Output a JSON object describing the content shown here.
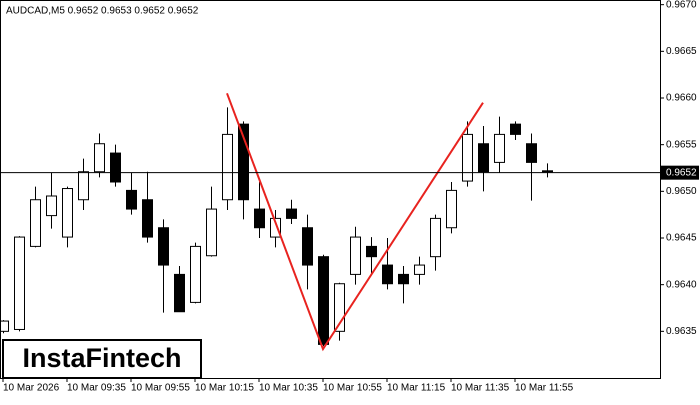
{
  "chart_data": {
    "type": "candlestick",
    "header": "AUDCAD,M5  0.9652 0.9653 0.9652 0.9652",
    "watermark": "InstaFintech",
    "categories": [
      "10 Mar 2026",
      null,
      null,
      null,
      "10 Mar 09:35",
      null,
      null,
      null,
      "10 Mar 09:55",
      null,
      null,
      null,
      "10 Mar 10:15",
      null,
      null,
      null,
      "10 Mar 10:35",
      null,
      null,
      null,
      "10 Mar 10:55",
      null,
      null,
      null,
      "10 Mar 11:15",
      null,
      null,
      null,
      "10 Mar 11:35",
      null,
      null,
      null,
      "10 Mar 11:55",
      null,
      null
    ],
    "open": [
      0.9635,
      0.96352,
      0.96441,
      0.96474,
      0.96451,
      0.96491,
      0.96521,
      0.96541,
      0.96501,
      0.96491,
      0.96461,
      0.96411,
      0.96381,
      0.96431,
      0.96491,
      0.96572,
      0.96481,
      0.96451,
      0.96481,
      0.96461,
      0.9643,
      0.9635,
      0.96411,
      0.96441,
      0.96421,
      0.96411,
      0.96411,
      0.9643,
      0.96461,
      0.96511,
      0.96551,
      0.96531,
      0.96572,
      0.96551,
      0.96522
    ],
    "high": [
      0.96362,
      0.96452,
      0.96505,
      0.9652,
      0.96505,
      0.96535,
      0.96562,
      0.9655,
      0.9652,
      0.96521,
      0.9647,
      0.9642,
      0.96445,
      0.96505,
      0.9659,
      0.96575,
      0.9651,
      0.9648,
      0.96491,
      0.96475,
      0.96432,
      0.96402,
      0.96462,
      0.96451,
      0.9645,
      0.9642,
      0.9643,
      0.96475,
      0.9651,
      0.96575,
      0.9657,
      0.9658,
      0.96575,
      0.96562,
      0.9653
    ],
    "low": [
      0.96348,
      0.9635,
      0.9644,
      0.9646,
      0.9644,
      0.9648,
      0.96515,
      0.96505,
      0.96475,
      0.96445,
      0.9637,
      0.96371,
      0.9638,
      0.9643,
      0.9648,
      0.9647,
      0.9645,
      0.9644,
      0.96465,
      0.96395,
      0.96334,
      0.9634,
      0.964,
      0.9641,
      0.96395,
      0.9638,
      0.964,
      0.96415,
      0.96455,
      0.96505,
      0.965,
      0.9652,
      0.96555,
      0.9649,
      0.96515
    ],
    "close": [
      0.96361,
      0.96451,
      0.96491,
      0.96495,
      0.96503,
      0.96521,
      0.96551,
      0.9651,
      0.96481,
      0.96451,
      0.96421,
      0.96371,
      0.96441,
      0.96481,
      0.96561,
      0.96491,
      0.96461,
      0.96471,
      0.96471,
      0.96421,
      0.96336,
      0.96401,
      0.96451,
      0.9643,
      0.96401,
      0.96401,
      0.96421,
      0.96471,
      0.96501,
      0.96561,
      0.96521,
      0.96561,
      0.96561,
      0.96531,
      0.96521
    ],
    "ylim": [
      0.963,
      0.96705
    ],
    "yticks": [
      0.9635,
      {
        "value": 0.964,
        "label": "0.9640"
      },
      0.9645,
      {
        "value": 0.965,
        "label": "0.9650"
      },
      0.9655,
      {
        "value": 0.966,
        "label": "0.9660"
      },
      0.9665,
      {
        "value": 0.967,
        "label": "0.9670"
      }
    ],
    "current_price": 0.9652,
    "pattern": {
      "color": "#e8231f",
      "points": [
        {
          "index": 14,
          "value": 0.96605
        },
        {
          "index": 20,
          "value": 0.96331
        },
        {
          "index": 30,
          "value": 0.96595
        }
      ]
    }
  }
}
